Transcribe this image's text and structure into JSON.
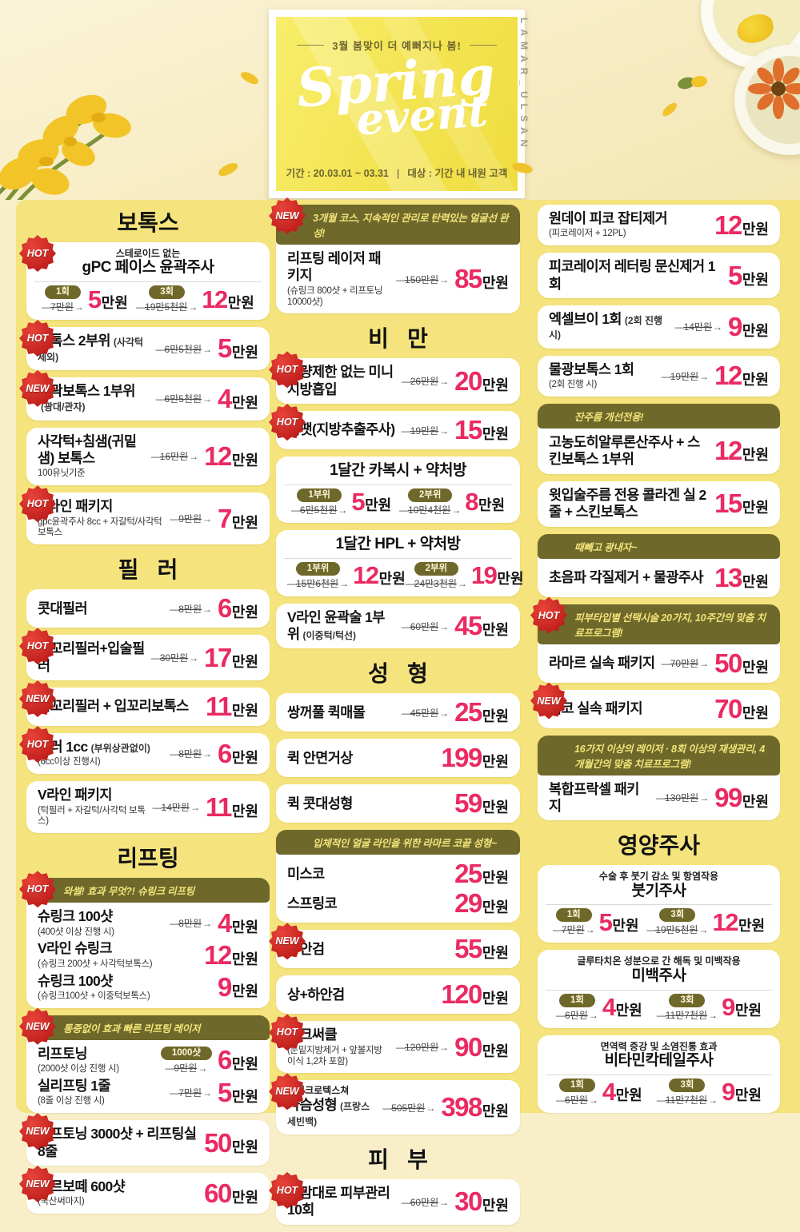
{
  "palette": {
    "accent_pink": "#ea2a62",
    "ribbon_olive": "#6e682b",
    "badge_red": "#c01f1c",
    "poster_yellow": "#f5e47d",
    "page_cream": "#f8efc9",
    "event_card_yellow": "#f3e350"
  },
  "header": {
    "tagline": "3월 봄맞이 더 예뻐지나 봄!",
    "title_line1": "Spring",
    "title_line2": "event",
    "period": "기간 : 20.03.01 ~ 03.31",
    "period_divider": "|",
    "target": "대상 : 기간 내 내원 고객",
    "side_text": "LAMAR_ULSAN"
  },
  "columns": [
    {
      "blocks": [
        {
          "type": "title",
          "text": "보톡스"
        },
        {
          "type": "card",
          "badge": "HOT",
          "rows": [
            {
              "t": "center",
              "sub": "스테로이드 없는",
              "title": "gPC 페이스 윤곽주사"
            },
            {
              "t": "dual",
              "sides": [
                {
                  "pill": "1회",
                  "old": "7만원",
                  "price": "5",
                  "unit": "만원"
                },
                {
                  "pill": "3회",
                  "old": "19만5천원",
                  "price": "12",
                  "unit": "만원"
                }
              ]
            }
          ]
        },
        {
          "type": "card",
          "badge": "HOT",
          "rows": [
            {
              "t": "item",
              "title": "보톡스 2부위",
              "tsmall": "(사각턱 제외)",
              "old": "6만5천원",
              "price": "5",
              "unit": "만원"
            }
          ]
        },
        {
          "type": "card",
          "badge": "NEW",
          "rows": [
            {
              "t": "item",
              "title": "윤곽보톡스 1부위",
              "tsmall": "(광대/관자)",
              "old": "6만5천원",
              "price": "4",
              "unit": "만원"
            }
          ]
        },
        {
          "type": "card",
          "rows": [
            {
              "t": "item",
              "title": "사각턱+침샘(귀밑샘) 보톡스",
              "sub": "100유닛기준",
              "old": "16만원",
              "price": "12",
              "unit": "만원"
            }
          ]
        },
        {
          "type": "card",
          "badge": "HOT",
          "rows": [
            {
              "t": "item",
              "title": "U라인 패키지",
              "sub": "gpc윤곽주사 8cc + 자갈턱/사각턱 보톡스",
              "old": "9만원",
              "price": "7",
              "unit": "만원"
            }
          ]
        },
        {
          "type": "title",
          "text": "필   러"
        },
        {
          "type": "card",
          "rows": [
            {
              "t": "item",
              "title": "콧대필러",
              "old": "8만원",
              "price": "6",
              "unit": "만원"
            }
          ]
        },
        {
          "type": "card",
          "badge": "HOT",
          "rows": [
            {
              "t": "item",
              "title": "입꼬리필러+입술필러",
              "old": "30만원",
              "price": "17",
              "unit": "만원"
            }
          ]
        },
        {
          "type": "card",
          "badge": "NEW",
          "rows": [
            {
              "t": "item",
              "title": "입꼬리필러 + 입꼬리보톡스",
              "price": "11",
              "unit": "만원"
            }
          ]
        },
        {
          "type": "card",
          "badge": "HOT",
          "rows": [
            {
              "t": "item",
              "title": "필러 1cc",
              "tsmall": "(부위상관없이)",
              "sub": "(6cc이상 진행시)",
              "old": "8만원",
              "price": "6",
              "unit": "만원"
            }
          ]
        },
        {
          "type": "card",
          "rows": [
            {
              "t": "item",
              "title": "V라인 패키지",
              "sub": "(턱필러 + 자갈턱/사각턱 보톡스)",
              "old": "14만원",
              "price": "11",
              "unit": "만원"
            }
          ]
        },
        {
          "type": "title",
          "text": "리프팅"
        },
        {
          "type": "card",
          "badge": "HOT",
          "ribbon": "와썰! 효과 무엇?! 슈링크 리프팅",
          "rows": [
            {
              "t": "item",
              "title": "슈링크 100샷",
              "sub": "(400샷 이상 진행 시)",
              "old": "8만원",
              "price": "4",
              "unit": "만원"
            },
            {
              "t": "item",
              "title": "V라인 슈링크",
              "sub": "(슈링크 200샷 + 사각턱보톡스)",
              "price": "12",
              "unit": "만원"
            },
            {
              "t": "item",
              "title": "슈링크 100샷",
              "sub": "(슈링크100샷 + 이중턱보톡스)",
              "price": "9",
              "unit": "만원"
            }
          ]
        },
        {
          "type": "card",
          "badge": "NEW",
          "ribbon": "통증없이 효과 빠른 리프팅 레이저",
          "rows": [
            {
              "t": "item",
              "title": "리프토닝",
              "sub": "(2000샷 이상 진행 시)",
              "pill": "1000샷",
              "old": "9만원",
              "price": "6",
              "unit": "만원"
            },
            {
              "t": "item",
              "title": "실리프팅 1줄",
              "sub": "(8줄 이상 진행 시)",
              "old": "7만원",
              "price": "5",
              "unit": "만원"
            }
          ]
        },
        {
          "type": "card",
          "badge": "NEW",
          "rows": [
            {
              "t": "item",
              "title": "리프토닝 3000샷 + 리프팅실 8줄",
              "price": "50",
              "unit": "만원"
            }
          ]
        },
        {
          "type": "card",
          "badge": "NEW",
          "rows": [
            {
              "t": "item",
              "title": "아르보떼 600샷",
              "sub": "(국산써마지)",
              "price": "60",
              "unit": "만원"
            }
          ]
        }
      ]
    },
    {
      "blocks": [
        {
          "type": "card",
          "badge": "NEW",
          "ribbon": "3개월 코스, 지속적인 관리로 탄력있는 얼굴선 완성!",
          "rows": [
            {
              "t": "item",
              "title": "리프팅 레이저 패키지",
              "sub": "(슈링크 800샷 + 리프토닝 10000샷)",
              "old": "150만원",
              "price": "85",
              "unit": "만원"
            }
          ]
        },
        {
          "type": "title",
          "text": "비   만"
        },
        {
          "type": "card",
          "badge": "HOT",
          "rows": [
            {
              "t": "item",
              "title": "용량제한 없는 미니지방흡입",
              "old": "26만원",
              "price": "20",
              "unit": "만원"
            }
          ]
        },
        {
          "type": "card",
          "badge": "HOT",
          "rows": [
            {
              "t": "item",
              "title": "씨팻(지방추출주사)",
              "old": "19만원",
              "price": "15",
              "unit": "만원"
            }
          ]
        },
        {
          "type": "card",
          "rows": [
            {
              "t": "center",
              "title": "1달간 카복시 + 약처방"
            },
            {
              "t": "dual",
              "sides": [
                {
                  "pill": "1부위",
                  "old": "6만5천원",
                  "price": "5",
                  "unit": "만원"
                },
                {
                  "pill": "2부위",
                  "old": "10만4천원",
                  "price": "8",
                  "unit": "만원"
                }
              ]
            }
          ]
        },
        {
          "type": "card",
          "rows": [
            {
              "t": "center",
              "title": "1달간 HPL + 약처방"
            },
            {
              "t": "dual",
              "sides": [
                {
                  "pill": "1부위",
                  "old": "15만6천원",
                  "price": "12",
                  "unit": "만원"
                },
                {
                  "pill": "2부위",
                  "old": "24만3천원",
                  "price": "19",
                  "unit": "만원"
                }
              ]
            }
          ]
        },
        {
          "type": "card",
          "rows": [
            {
              "t": "item",
              "title": "V라인 윤곽술 1부위",
              "tsmall": "(이중턱/턱선)",
              "old": "60만원",
              "price": "45",
              "unit": "만원"
            }
          ]
        },
        {
          "type": "title",
          "text": "성   형"
        },
        {
          "type": "card",
          "rows": [
            {
              "t": "item",
              "title": "쌍꺼풀 퀵매몰",
              "old": "45만원",
              "price": "25",
              "unit": "만원"
            }
          ]
        },
        {
          "type": "card",
          "rows": [
            {
              "t": "item",
              "title": "퀵 안면거상",
              "price": "199",
              "unit": "만원"
            }
          ]
        },
        {
          "type": "card",
          "rows": [
            {
              "t": "item",
              "title": "퀵 콧대성형",
              "price": "59",
              "unit": "만원"
            }
          ]
        },
        {
          "type": "card",
          "ribbon": "입체적인 얼굴 라인을 위한 라마르 코끝 성형~",
          "rows": [
            {
              "t": "item",
              "title": "미스코",
              "price": "25",
              "unit": "만원"
            },
            {
              "t": "item",
              "title": "스프링코",
              "price": "29",
              "unit": "만원"
            }
          ]
        },
        {
          "type": "card",
          "badge": "NEW",
          "rows": [
            {
              "t": "item",
              "title": "상안검",
              "price": "55",
              "unit": "만원"
            }
          ]
        },
        {
          "type": "card",
          "rows": [
            {
              "t": "item",
              "title": "상+하안검",
              "price": "120",
              "unit": "만원"
            }
          ]
        },
        {
          "type": "card",
          "badge": "HOT",
          "rows": [
            {
              "t": "item",
              "title": "다크써클",
              "sub": "(눈밑지방제거 + 앞볼지방이식 1,2차 포함)",
              "old": "120만원",
              "price": "90",
              "unit": "만원"
            }
          ]
        },
        {
          "type": "card",
          "badge": "NEW",
          "rows": [
            {
              "t": "item",
              "ttop": "마이크로텍스쳐",
              "title": "가슴성형",
              "tsmall": "(프랑스 세빈백)",
              "old": "505만원",
              "price": "398",
              "unit": "만원"
            }
          ]
        },
        {
          "type": "title",
          "text": "피   부"
        },
        {
          "type": "card",
          "badge": "HOT",
          "rows": [
            {
              "t": "item",
              "title": "내맘대로 피부관리 10회",
              "old": "60만원",
              "price": "30",
              "unit": "만원"
            }
          ]
        }
      ]
    },
    {
      "blocks": [
        {
          "type": "card",
          "rows": [
            {
              "t": "item",
              "title": "원데이 피코 잡티제거",
              "sub": "(피코레이저 + 12PL)",
              "price": "12",
              "unit": "만원"
            }
          ]
        },
        {
          "type": "card",
          "rows": [
            {
              "t": "item",
              "title": "피코레이저 레터링 문신제거 1회",
              "price": "5",
              "unit": "만원"
            }
          ]
        },
        {
          "type": "card",
          "rows": [
            {
              "t": "item",
              "title": "엑셀브이 1회",
              "tsmall": "(2회 진행 시)",
              "old": "14만원",
              "price": "9",
              "unit": "만원"
            }
          ]
        },
        {
          "type": "card",
          "rows": [
            {
              "t": "item",
              "title": "물광보톡스 1회",
              "sub": "(2회 진행 시)",
              "old": "19만원",
              "price": "12",
              "unit": "만원"
            }
          ]
        },
        {
          "type": "card",
          "ribbon": "잔주름 개선전용!",
          "rows": [
            {
              "t": "item",
              "title": "고농도히알루론산주사 + 스킨보톡스 1부위",
              "price": "12",
              "unit": "만원"
            }
          ]
        },
        {
          "type": "card",
          "rows": [
            {
              "t": "item",
              "title": "윗입술주름 전용 콜라겐 실 2줄 + 스킨보톡스",
              "price": "15",
              "unit": "만원"
            }
          ]
        },
        {
          "type": "card",
          "ribbon": "때빼고 광내자~",
          "rows": [
            {
              "t": "item",
              "title": "초음파 각질제거 + 물광주사",
              "price": "13",
              "unit": "만원"
            }
          ]
        },
        {
          "type": "card",
          "badge": "HOT",
          "ribbon": "피부타입별 선택시술 20가지, 10주간의 맞춤 치료프로그램!",
          "rows": [
            {
              "t": "item",
              "title": "라마르 실속 패키지",
              "old": "70만원",
              "price": "50",
              "unit": "만원"
            }
          ]
        },
        {
          "type": "card",
          "badge": "NEW",
          "rows": [
            {
              "t": "item",
              "title": "피코 실속 패키지",
              "price": "70",
              "unit": "만원"
            }
          ]
        },
        {
          "type": "card",
          "ribbon": "16가지 이상의 레이저 · 8회 이상의 재생관리, 4개월간의 맞춤 치료프로그램!",
          "rows": [
            {
              "t": "item",
              "title": "복합프락셀 패키지",
              "old": "130만원",
              "price": "99",
              "unit": "만원"
            }
          ]
        },
        {
          "type": "title",
          "text": "영양주사"
        },
        {
          "type": "card",
          "rows": [
            {
              "t": "center",
              "sub": "수술 후 붓기 감소 및 항염작용",
              "title": "붓기주사"
            },
            {
              "t": "dual",
              "sides": [
                {
                  "pill": "1회",
                  "old": "7만원",
                  "price": "5",
                  "unit": "만원"
                },
                {
                  "pill": "3회",
                  "old": "19만5천원",
                  "price": "12",
                  "unit": "만원"
                }
              ]
            }
          ]
        },
        {
          "type": "card",
          "rows": [
            {
              "t": "center",
              "sub": "글루타치온 성분으로 간 해독 및 미백작용",
              "title": "미백주사"
            },
            {
              "t": "dual",
              "sides": [
                {
                  "pill": "1회",
                  "old": "6만원",
                  "price": "4",
                  "unit": "만원"
                },
                {
                  "pill": "3회",
                  "old": "11만7천원",
                  "price": "9",
                  "unit": "만원"
                }
              ]
            }
          ]
        },
        {
          "type": "card",
          "rows": [
            {
              "t": "center",
              "sub": "면역력 증강 및 소염진통 효과",
              "title": "비타민칵테일주사"
            },
            {
              "t": "dual",
              "sides": [
                {
                  "pill": "1회",
                  "old": "6만원",
                  "price": "4",
                  "unit": "만원"
                },
                {
                  "pill": "3회",
                  "old": "11만7천원",
                  "price": "9",
                  "unit": "만원"
                }
              ]
            }
          ]
        }
      ]
    }
  ]
}
